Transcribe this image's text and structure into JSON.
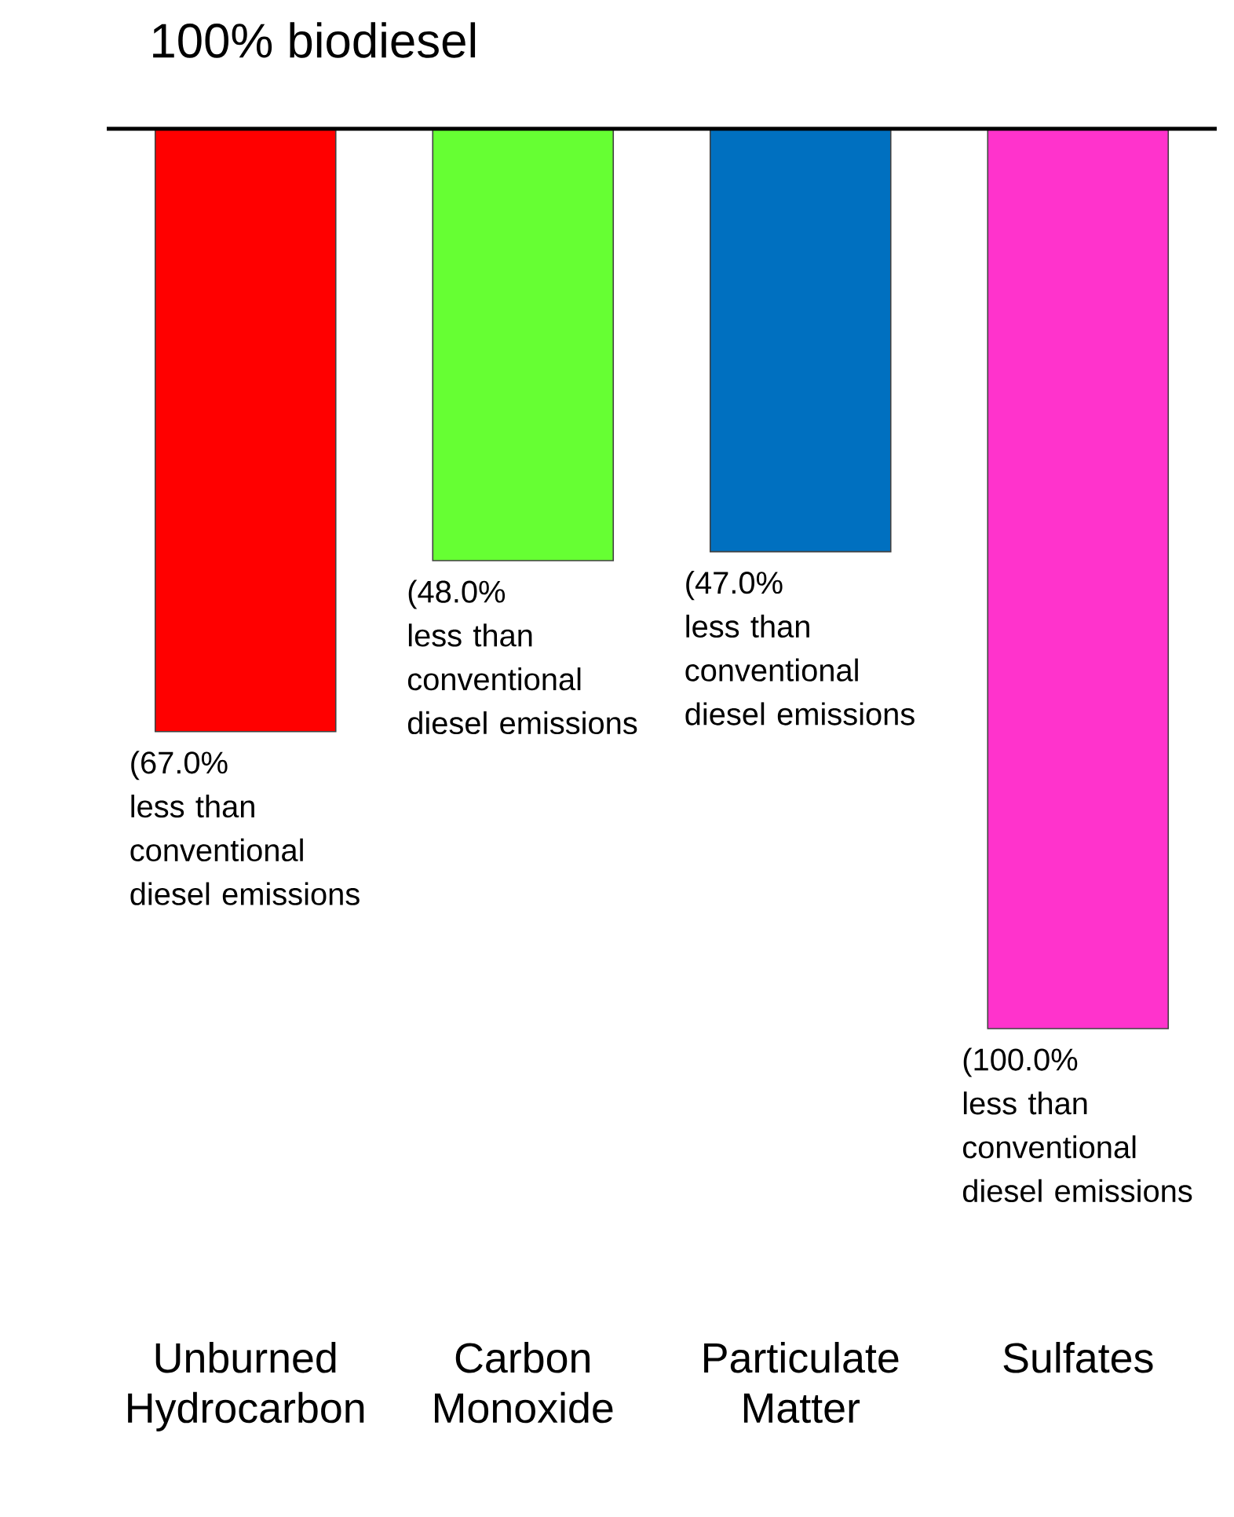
{
  "chart_data": {
    "type": "bar",
    "title": "100% biodiesel",
    "categories": [
      "Unburned Hydrocarbon",
      "Carbon Monoxide",
      "Particulate Matter",
      "Sulfates"
    ],
    "values": [
      -67,
      -48,
      -47,
      -100
    ],
    "colors": [
      "#ff0000",
      "#66ff33",
      "#0070c0",
      "#ff33cc"
    ],
    "value_labels": [
      "(67.0% less than conventional diesel emissions",
      "(48.0% less than conventional diesel emissions",
      "(47.0% less than conventional diesel emissions",
      "(100.0% less than conventional diesel emissions"
    ]
  }
}
